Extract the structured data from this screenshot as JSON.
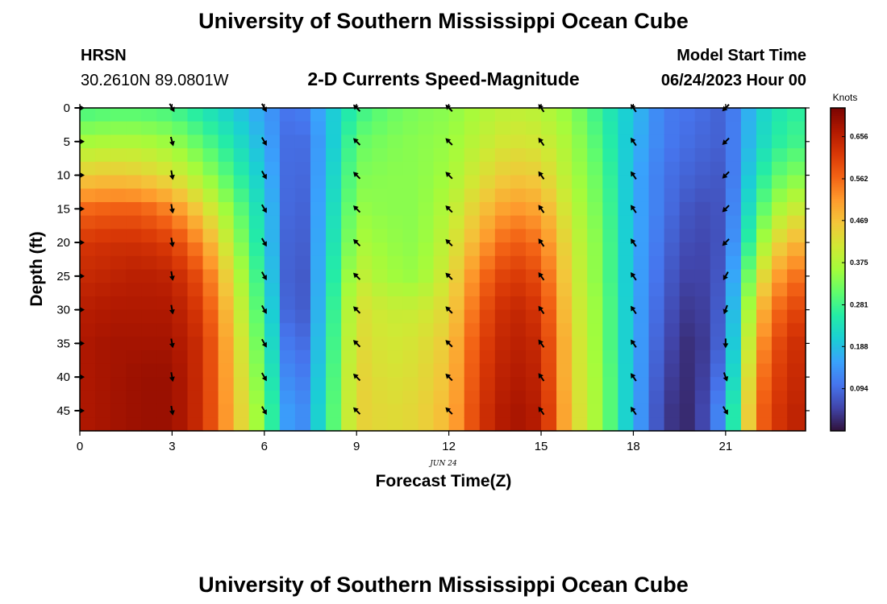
{
  "header": {
    "title": "University of Southern Mississippi Ocean Cube",
    "station": "HRSN",
    "coords": "30.2610N  89.0801W",
    "subtitle": "2-D Currents Speed-Magnitude",
    "start_label": "Model Start Time",
    "start_value": "06/24/2023 Hour 00",
    "footer_title": "University of Southern Mississippi Ocean Cube"
  },
  "chart_data": {
    "type": "heatmap",
    "title": "2-D Currents Speed-Magnitude",
    "xlabel": "Forecast Time(Z)",
    "ylabel": "Depth (ft)",
    "date_label": "JUN 24",
    "xlim": [
      0,
      23.6
    ],
    "ylim": [
      0,
      48
    ],
    "y_inverted": true,
    "x_ticks": [
      0,
      3,
      6,
      9,
      12,
      15,
      18,
      21
    ],
    "y_ticks": [
      0,
      5,
      10,
      15,
      20,
      25,
      30,
      35,
      40,
      45
    ],
    "colorbar": {
      "label": "Knots",
      "min": 0.0,
      "max": 0.72,
      "ticks": [
        "0.656",
        "0.562",
        "0.469",
        "0.375",
        "0.281",
        "0.188",
        "0.094"
      ],
      "colors": [
        "#30123b",
        "#4145ab",
        "#4675ed",
        "#39a2fc",
        "#1bcfd4",
        "#24eca6",
        "#61fc6c",
        "#a4fc3b",
        "#d1e834",
        "#f3c63a",
        "#fe9b2d",
        "#f36315",
        "#d93806",
        "#b11901",
        "#7a0402"
      ]
    },
    "speed_profiles": {
      "hours": [
        0,
        1,
        2,
        3,
        4,
        5,
        6,
        7,
        8,
        9,
        10,
        11,
        12,
        13,
        14,
        15,
        16,
        17,
        18,
        19,
        20,
        21,
        22,
        23
      ],
      "depths": [
        0,
        5,
        10,
        15,
        20,
        25,
        30,
        35,
        40,
        45,
        48
      ],
      "values": [
        [
          0.28,
          0.36,
          0.45,
          0.56,
          0.62,
          0.64,
          0.66,
          0.67,
          0.67,
          0.67,
          0.67
        ],
        [
          0.29,
          0.37,
          0.46,
          0.57,
          0.63,
          0.65,
          0.67,
          0.68,
          0.68,
          0.68,
          0.68
        ],
        [
          0.29,
          0.37,
          0.45,
          0.57,
          0.63,
          0.66,
          0.67,
          0.68,
          0.69,
          0.69,
          0.69
        ],
        [
          0.28,
          0.35,
          0.42,
          0.53,
          0.61,
          0.65,
          0.67,
          0.68,
          0.69,
          0.69,
          0.69
        ],
        [
          0.24,
          0.3,
          0.36,
          0.44,
          0.52,
          0.58,
          0.61,
          0.63,
          0.63,
          0.63,
          0.63
        ],
        [
          0.2,
          0.24,
          0.28,
          0.33,
          0.37,
          0.41,
          0.44,
          0.46,
          0.47,
          0.48,
          0.48
        ],
        [
          0.15,
          0.17,
          0.19,
          0.21,
          0.22,
          0.24,
          0.26,
          0.28,
          0.3,
          0.32,
          0.32
        ],
        [
          0.09,
          0.07,
          0.06,
          0.05,
          0.04,
          0.03,
          0.03,
          0.05,
          0.07,
          0.09,
          0.09
        ],
        [
          0.18,
          0.17,
          0.18,
          0.19,
          0.2,
          0.21,
          0.22,
          0.23,
          0.24,
          0.25,
          0.25
        ],
        [
          0.27,
          0.31,
          0.33,
          0.35,
          0.37,
          0.4,
          0.43,
          0.44,
          0.45,
          0.45,
          0.45
        ],
        [
          0.31,
          0.33,
          0.34,
          0.34,
          0.35,
          0.36,
          0.4,
          0.41,
          0.42,
          0.43,
          0.43
        ],
        [
          0.33,
          0.34,
          0.34,
          0.34,
          0.34,
          0.35,
          0.4,
          0.42,
          0.43,
          0.44,
          0.44
        ],
        [
          0.34,
          0.35,
          0.36,
          0.38,
          0.4,
          0.42,
          0.44,
          0.46,
          0.47,
          0.48,
          0.48
        ],
        [
          0.37,
          0.39,
          0.42,
          0.46,
          0.5,
          0.55,
          0.58,
          0.6,
          0.61,
          0.62,
          0.62
        ],
        [
          0.39,
          0.42,
          0.46,
          0.52,
          0.58,
          0.62,
          0.65,
          0.66,
          0.67,
          0.68,
          0.68
        ],
        [
          0.38,
          0.41,
          0.45,
          0.5,
          0.55,
          0.59,
          0.62,
          0.64,
          0.65,
          0.66,
          0.66
        ],
        [
          0.34,
          0.36,
          0.37,
          0.39,
          0.41,
          0.42,
          0.43,
          0.44,
          0.44,
          0.45,
          0.45
        ],
        [
          0.26,
          0.28,
          0.3,
          0.31,
          0.32,
          0.32,
          0.33,
          0.33,
          0.34,
          0.34,
          0.34
        ],
        [
          0.19,
          0.18,
          0.17,
          0.17,
          0.17,
          0.17,
          0.17,
          0.17,
          0.17,
          0.17,
          0.17
        ],
        [
          0.11,
          0.11,
          0.1,
          0.1,
          0.09,
          0.08,
          0.07,
          0.06,
          0.05,
          0.04,
          0.04
        ],
        [
          0.1,
          0.09,
          0.08,
          0.06,
          0.05,
          0.04,
          0.03,
          0.02,
          0.02,
          0.02,
          0.02
        ],
        [
          0.08,
          0.08,
          0.07,
          0.07,
          0.07,
          0.08,
          0.09,
          0.1,
          0.12,
          0.15,
          0.15
        ],
        [
          0.2,
          0.21,
          0.24,
          0.28,
          0.33,
          0.4,
          0.46,
          0.5,
          0.53,
          0.55,
          0.55
        ],
        [
          0.26,
          0.28,
          0.33,
          0.4,
          0.48,
          0.55,
          0.6,
          0.63,
          0.64,
          0.65,
          0.65
        ]
      ]
    },
    "vectors": {
      "hours": [
        0,
        3,
        6,
        9,
        12,
        15,
        18,
        21
      ],
      "depths": [
        0,
        5,
        10,
        15,
        20,
        25,
        30,
        35,
        40,
        45
      ],
      "direction_deg": [
        [
          0,
          0,
          0,
          0,
          0,
          0,
          0,
          0,
          0,
          0
        ],
        [
          60,
          75,
          80,
          80,
          80,
          80,
          80,
          80,
          80,
          80
        ],
        [
          60,
          60,
          60,
          60,
          60,
          60,
          60,
          60,
          60,
          60
        ],
        [
          225,
          225,
          225,
          225,
          225,
          225,
          225,
          225,
          225,
          225
        ],
        [
          225,
          225,
          225,
          225,
          225,
          225,
          225,
          225,
          225,
          225
        ],
        [
          235,
          235,
          235,
          235,
          235,
          235,
          235,
          235,
          235,
          235
        ],
        [
          235,
          235,
          235,
          235,
          235,
          235,
          235,
          235,
          235,
          235
        ],
        [
          135,
          135,
          135,
          135,
          135,
          120,
          110,
          90,
          70,
          60
        ]
      ]
    }
  }
}
